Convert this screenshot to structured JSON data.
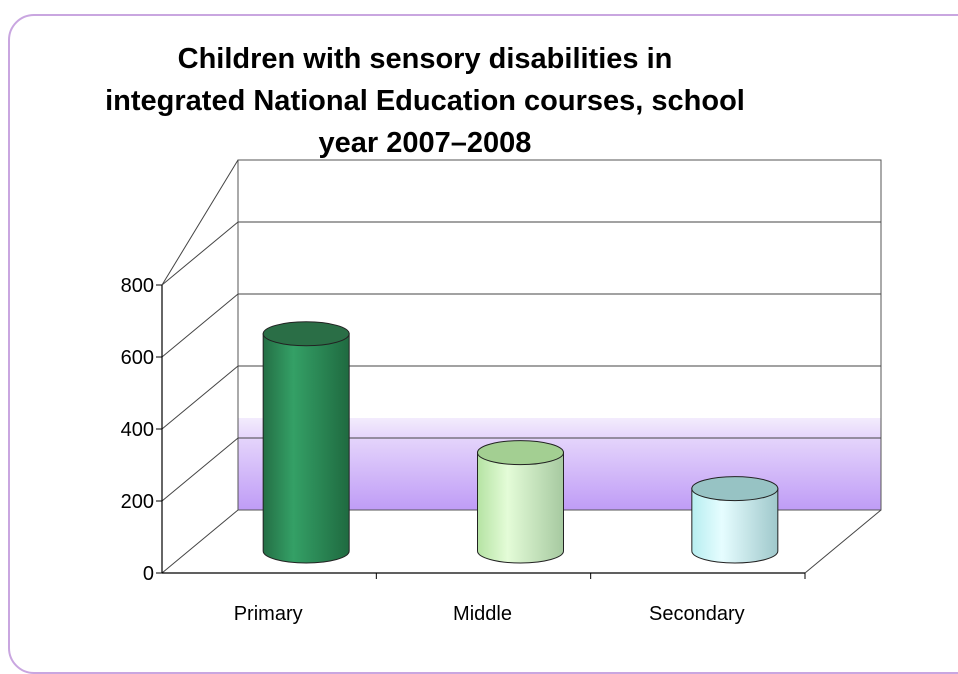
{
  "chart_data": {
    "type": "bar",
    "title": "Children with sensory disabilities in integrated National Education courses, school year 2007–2008",
    "categories": [
      "Primary",
      "Middle",
      "Secondary"
    ],
    "values": [
      620,
      290,
      190
    ],
    "ylim": [
      0,
      800
    ],
    "yticks": [
      0,
      200,
      400,
      600,
      800
    ],
    "xlabel": "",
    "ylabel": "",
    "legend": "none",
    "grid": true,
    "colors": {
      "bars": [
        "#2e8b57",
        "#c6efb8",
        "#c8f4f4"
      ],
      "bar_tops": [
        "#2a6e46",
        "#a3cf92",
        "#97c3c4"
      ],
      "floor_band": "#c4a4f7"
    }
  }
}
